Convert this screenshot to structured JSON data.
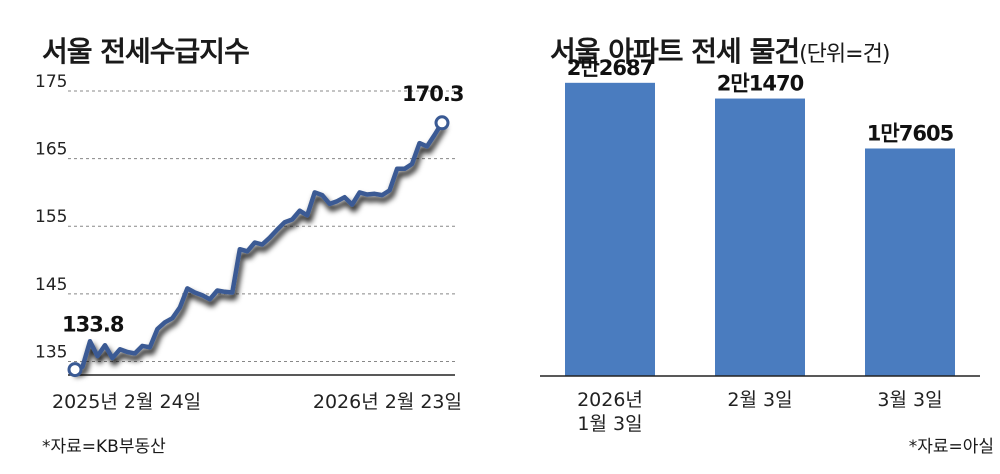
{
  "charts": {
    "left": {
      "title": "서울 전세수급지수",
      "source": "*자료=KB부동산"
    },
    "right": {
      "title": "서울 아파트 전세 물건",
      "unit": "(단위=건)",
      "source": "*자료=아실"
    }
  },
  "chart_data": [
    {
      "type": "line",
      "title": "서울 전세수급지수",
      "ylim": [
        133,
        175
      ],
      "yticks": [
        135,
        145,
        155,
        165,
        175
      ],
      "xlabel": "",
      "ylabel": "",
      "x_start_label": "2025년 2월 24일",
      "x_end_label": "2026년 2월 23일",
      "grid": true,
      "series": [
        {
          "values": [
            133.8,
            134.2,
            138.0,
            135.8,
            137.4,
            135.5,
            136.8,
            136.4,
            136.2,
            137.3,
            137.1,
            139.8,
            140.8,
            141.4,
            143.0,
            145.8,
            145.2,
            144.8,
            144.2,
            145.5,
            145.3,
            145.2,
            151.6,
            151.3,
            152.6,
            152.3,
            153.3,
            154.5,
            155.6,
            156.0,
            157.3,
            156.6,
            160.0,
            159.6,
            158.3,
            158.7,
            159.3,
            158.2,
            160.0,
            159.7,
            159.8,
            159.6,
            160.3,
            163.5,
            163.5,
            164.2,
            167.3,
            166.8,
            168.5,
            170.3
          ]
        }
      ],
      "annotations": [
        {
          "index": 0,
          "label": "133.8"
        },
        {
          "index": 49,
          "label": "170.3"
        }
      ],
      "color": "#3a5a94"
    },
    {
      "type": "bar",
      "title": "서울 아파트 전세 물건",
      "unit": "(단위=건)",
      "categories": [
        [
          "2026년",
          "1월 3일"
        ],
        [
          "2월 3일"
        ],
        [
          "3월 3일"
        ]
      ],
      "values": [
        22687,
        21470,
        17605
      ],
      "value_labels": [
        "2만2687",
        "2만1470",
        "1만7605"
      ],
      "ylim": [
        0,
        26000
      ],
      "color": "#4a7cbf"
    }
  ]
}
